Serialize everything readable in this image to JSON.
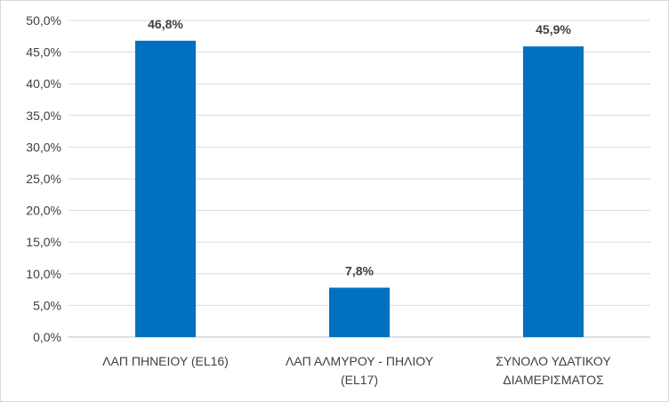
{
  "chart_data": {
    "type": "bar",
    "title": "",
    "xlabel": "",
    "ylabel": "",
    "categories": [
      [
        "ΛΑΠ ΠΗΝΕΙΟΥ (EL16)"
      ],
      [
        "ΛΑΠ ΑΛΜΥΡΟΥ - ΠΗΛΙΟΥ",
        "(EL17)"
      ],
      [
        "ΣΥΝΟΛΟ ΥΔΑΤΙΚΟΥ",
        "ΔΙΑΜΕΡΙΣΜΑΤΟΣ"
      ]
    ],
    "values": [
      46.8,
      7.8,
      45.9
    ],
    "data_labels": [
      "46,8%",
      "7,8%",
      "45,9%"
    ],
    "ylim": [
      0,
      50
    ],
    "y_ticks": [
      "0,0%",
      "5,0%",
      "10,0%",
      "15,0%",
      "20,0%",
      "25,0%",
      "30,0%",
      "35,0%",
      "40,0%",
      "45,0%",
      "50,0%"
    ],
    "grid": true,
    "legend": "none",
    "bar_color": "#0070c0",
    "grid_color": "#d9d9d9",
    "text_color": "#404040"
  }
}
